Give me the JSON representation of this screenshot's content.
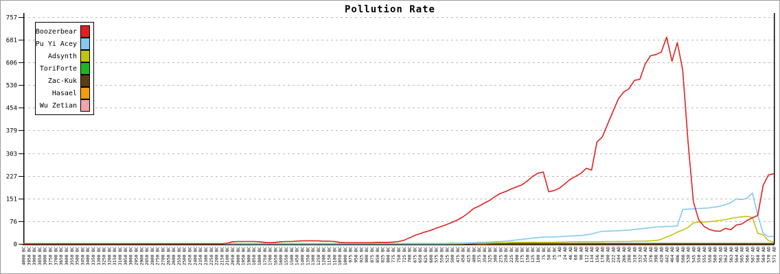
{
  "chart_data": {
    "type": "line",
    "title": "Pollution Rate",
    "xlabel": "",
    "ylabel": "",
    "ylim": [
      0,
      757
    ],
    "y_ticks": [
      0,
      76,
      151,
      227,
      303,
      379,
      454,
      530,
      606,
      681,
      757
    ],
    "grid": "horizontal-dashed",
    "legend_position": "top-left",
    "colors": {
      "grid": "#b9b9b9",
      "axis": "#000000",
      "background": "#ffffff"
    },
    "x_labels": [
      "4000 BC",
      "3950 BC",
      "3900 BC",
      "3850 BC",
      "3800 BC",
      "3750 BC",
      "3700 BC",
      "3650 BC",
      "3600 BC",
      "3550 BC",
      "3500 BC",
      "3450 BC",
      "3400 BC",
      "3350 BC",
      "3300 BC",
      "3250 BC",
      "3200 BC",
      "3150 BC",
      "3100 BC",
      "3050 BC",
      "3000 BC",
      "2950 BC",
      "2900 BC",
      "2850 BC",
      "2800 BC",
      "2750 BC",
      "2700 BC",
      "2650 BC",
      "2600 BC",
      "2550 BC",
      "2500 BC",
      "2450 BC",
      "2400 BC",
      "2350 BC",
      "2300 BC",
      "2250 BC",
      "2200 BC",
      "2150 BC",
      "2100 BC",
      "2050 BC",
      "2000 BC",
      "1950 BC",
      "1900 BC",
      "1850 BC",
      "1800 BC",
      "1750 BC",
      "1700 BC",
      "1650 BC",
      "1600 BC",
      "1550 BC",
      "1500 BC",
      "1450 BC",
      "1400 BC",
      "1350 BC",
      "1300 BC",
      "1250 BC",
      "1200 BC",
      "1150 BC",
      "1100 BC",
      "1050 BC",
      "1000 BC",
      "975 BC",
      "950 BC",
      "925 BC",
      "900 BC",
      "875 BC",
      "850 BC",
      "825 BC",
      "800 BC",
      "775 BC",
      "750 BC",
      "725 BC",
      "700 BC",
      "675 BC",
      "650 BC",
      "625 BC",
      "600 BC",
      "575 BC",
      "550 BC",
      "525 BC",
      "500 BC",
      "475 BC",
      "450 BC",
      "425 BC",
      "400 BC",
      "375 BC",
      "350 BC",
      "325 BC",
      "300 BC",
      "275 BC",
      "250 BC",
      "225 BC",
      "200 BC",
      "175 BC",
      "150 BC",
      "125 BC",
      "100 BC",
      "75 BC",
      "50 BC",
      "25 BC",
      "1 AD",
      "24 AD",
      "46 AD",
      "68 AD",
      "90 AD",
      "112 AD",
      "134 AD",
      "156 AD",
      "178 AD",
      "200 AD",
      "222 AD",
      "244 AD",
      "266 AD",
      "288 AD",
      "310 AD",
      "332 AD",
      "354 AD",
      "376 AD",
      "398 AD",
      "420 AD",
      "442 AD",
      "464 AD",
      "486 AD",
      "508 AD",
      "530 AD",
      "545 AD",
      "550 AD",
      "555 AD",
      "558 AD",
      "560 AD",
      "561 AD",
      "562 AD",
      "563 AD",
      "564 AD",
      "565 AD",
      "566 AD",
      "567 AD",
      "568 AD",
      "569 AD",
      "570 AD",
      "571 AD"
    ],
    "series": [
      {
        "name": "Boozerbear",
        "color": "#e02020",
        "values": [
          0,
          0,
          0,
          0,
          0,
          0,
          0,
          0,
          0,
          0,
          0,
          0,
          0,
          0,
          0,
          0,
          0,
          0,
          0,
          0,
          0,
          0,
          0,
          0,
          0,
          0,
          0,
          0,
          0,
          0,
          0,
          0,
          0,
          0,
          0,
          0,
          0,
          0,
          2,
          7,
          8,
          8,
          8,
          8,
          7,
          5,
          4,
          5,
          7,
          8,
          8,
          9,
          10,
          10,
          10,
          10,
          9,
          9,
          8,
          5,
          4,
          4,
          4,
          4,
          4,
          4,
          5,
          5,
          5,
          6,
          8,
          12,
          20,
          28,
          34,
          40,
          45,
          52,
          58,
          65,
          72,
          80,
          90,
          103,
          118,
          126,
          136,
          145,
          158,
          168,
          175,
          183,
          190,
          197,
          210,
          225,
          236,
          240,
          174,
          178,
          186,
          200,
          215,
          225,
          235,
          252,
          246,
          340,
          357,
          400,
          442,
          484,
          507,
          518,
          546,
          549,
          600,
          628,
          632,
          640,
          690,
          610,
          672,
          580,
          340,
          140,
          80,
          58,
          48,
          43,
          42,
          52,
          47,
          63,
          66,
          78,
          87,
          95,
          195,
          230,
          234
        ]
      },
      {
        "name": "Pu Yi Acey",
        "color": "#85c9ee",
        "values": [
          0,
          0,
          0,
          0,
          0,
          0,
          0,
          0,
          0,
          0,
          0,
          0,
          0,
          0,
          0,
          0,
          0,
          0,
          0,
          0,
          0,
          0,
          0,
          0,
          0,
          0,
          0,
          0,
          0,
          0,
          0,
          0,
          0,
          0,
          0,
          0,
          0,
          0,
          0,
          0,
          0,
          0,
          0,
          0,
          0,
          0,
          0,
          0,
          0,
          0,
          0,
          0,
          0,
          0,
          0,
          0,
          0,
          0,
          0,
          0,
          0,
          0,
          0,
          0,
          0,
          0,
          0,
          0,
          0,
          0,
          0,
          0,
          0,
          0,
          0,
          0,
          0,
          0,
          0,
          0,
          1,
          2,
          3,
          3,
          4,
          5,
          5,
          6,
          7,
          8,
          9,
          11,
          13,
          15,
          17,
          19,
          21,
          23,
          23,
          23,
          24,
          25,
          26,
          27,
          28,
          30,
          33,
          38,
          42,
          42,
          43,
          44,
          45,
          46,
          48,
          50,
          52,
          54,
          56,
          57,
          58,
          58,
          60,
          115,
          116,
          117,
          118,
          119,
          120,
          123,
          126,
          131,
          138,
          150,
          148,
          152,
          170,
          96,
          35,
          24,
          25
        ]
      },
      {
        "name": "Adsynth",
        "color": "#c2c218",
        "values": [
          0,
          0,
          0,
          0,
          0,
          0,
          0,
          0,
          0,
          0,
          0,
          0,
          0,
          0,
          0,
          0,
          0,
          0,
          0,
          0,
          0,
          0,
          0,
          0,
          0,
          0,
          0,
          0,
          0,
          0,
          0,
          0,
          0,
          0,
          0,
          0,
          0,
          0,
          0,
          0,
          0,
          0,
          0,
          0,
          0,
          0,
          0,
          0,
          0,
          0,
          0,
          0,
          0,
          0,
          0,
          0,
          0,
          0,
          0,
          0,
          0,
          0,
          0,
          0,
          0,
          0,
          0,
          0,
          0,
          0,
          0,
          0,
          0,
          0,
          0,
          0,
          0,
          0,
          0,
          0,
          0,
          0,
          1,
          2,
          3,
          3,
          3,
          3,
          4,
          4,
          4,
          5,
          5,
          5,
          5,
          5,
          5,
          5,
          5,
          5,
          6,
          6,
          7,
          7,
          7,
          7,
          7,
          7,
          7,
          8,
          8,
          8,
          8,
          8,
          9,
          9,
          9,
          10,
          11,
          15,
          23,
          30,
          39,
          46,
          55,
          70,
          73,
          73,
          74,
          76,
          79,
          81,
          85,
          88,
          90,
          92,
          88,
          35,
          30,
          11,
          5
        ]
      },
      {
        "name": "ToriForte",
        "color": "#21b421",
        "values": [
          1,
          1,
          1,
          1,
          1,
          1,
          1,
          1,
          1,
          1,
          1,
          1,
          1,
          1,
          1,
          1,
          1,
          1,
          1,
          1,
          1,
          1,
          1,
          1,
          1,
          1,
          1,
          1,
          1,
          1,
          1,
          1,
          1,
          1,
          1,
          1,
          1,
          1,
          1,
          1,
          1,
          1,
          1,
          1,
          1,
          1,
          1,
          1,
          1,
          1,
          1,
          1,
          1,
          1,
          1,
          1,
          1,
          1,
          1,
          1,
          1,
          1,
          1,
          1,
          1,
          1,
          1,
          1,
          1,
          1,
          1,
          1,
          1,
          1,
          1,
          1,
          1,
          1,
          1,
          1,
          2,
          2,
          2,
          2,
          3,
          3,
          3,
          3,
          3,
          3,
          3,
          2,
          2,
          2,
          2,
          2,
          1,
          1,
          1,
          1,
          1,
          1,
          1,
          1,
          1,
          1,
          1,
          1,
          1,
          1,
          1,
          1,
          1,
          1,
          1,
          1,
          1,
          1,
          1,
          1,
          1,
          1,
          1,
          1,
          1,
          1,
          1,
          1,
          1,
          1,
          1,
          1,
          1,
          1,
          1,
          1,
          1,
          1,
          1,
          1,
          1
        ]
      },
      {
        "name": "Zac-Kuk",
        "color": "#5d3b17",
        "values": [
          0,
          0,
          0,
          0,
          0,
          0,
          0,
          0,
          0,
          0,
          0,
          0,
          0,
          0,
          0,
          0,
          0,
          0,
          0,
          0,
          0,
          0,
          0,
          0,
          0,
          0,
          0,
          0,
          0,
          0,
          0,
          0,
          0,
          0,
          0,
          0,
          0,
          0,
          0,
          0,
          0,
          0,
          0,
          0,
          0,
          0,
          0,
          0,
          0,
          0,
          0,
          0,
          0,
          0,
          0,
          0,
          0,
          0,
          0,
          0,
          0,
          0,
          0,
          0,
          0,
          0,
          0,
          0,
          0,
          0,
          0,
          0,
          0,
          0,
          0,
          0,
          0,
          0,
          0,
          0,
          0,
          0,
          0,
          0,
          1,
          2,
          2,
          1,
          1,
          1,
          1,
          1,
          1,
          1,
          1,
          1,
          1,
          1,
          1,
          1,
          1,
          1,
          1,
          1,
          1,
          1,
          1,
          1,
          1,
          1,
          1,
          1,
          1,
          1,
          1,
          1,
          1,
          1,
          1,
          1,
          1,
          1,
          1,
          1,
          1,
          1,
          1,
          1,
          1,
          1,
          1,
          1,
          1,
          1,
          1,
          1,
          1,
          1,
          1,
          1,
          1
        ]
      },
      {
        "name": "Hasael",
        "color": "#f49c0c",
        "values": [
          0,
          0,
          0,
          0,
          0,
          0,
          0,
          0,
          0,
          0,
          0,
          0,
          0,
          0,
          0,
          0,
          0,
          0,
          0,
          0,
          0,
          0,
          0,
          0,
          0,
          0,
          0,
          0,
          0,
          0,
          0,
          0,
          0,
          0,
          0,
          0,
          0,
          0,
          0,
          0,
          0,
          0,
          0,
          0,
          0,
          0,
          0,
          0,
          0,
          0,
          0,
          0,
          0,
          0,
          0,
          0,
          0,
          0,
          0,
          0,
          0,
          0,
          0,
          0,
          0,
          0,
          0,
          0,
          0,
          0,
          0,
          0,
          0,
          0,
          0,
          0,
          0,
          0,
          0,
          0,
          0,
          0,
          0,
          0,
          0,
          0,
          0,
          0,
          0,
          0,
          0,
          0,
          0,
          0,
          0,
          0,
          0,
          0,
          0,
          0,
          0,
          0,
          0,
          0,
          0,
          0,
          0,
          0,
          0,
          0,
          0,
          0,
          0,
          0,
          0,
          0,
          0,
          0,
          0,
          0,
          0,
          0,
          0,
          0,
          0,
          0,
          0,
          0,
          0,
          0,
          0,
          0,
          0,
          0,
          0,
          0,
          0,
          0,
          0,
          0,
          0
        ]
      },
      {
        "name": "Wu Zetian",
        "color": "#f2a3ab",
        "values": [
          0,
          0,
          0,
          0,
          0,
          0,
          0,
          0,
          0,
          0,
          0,
          0,
          0,
          0,
          0,
          0,
          0,
          0,
          0,
          0,
          0,
          0,
          0,
          0,
          0,
          0,
          0,
          0,
          0,
          0,
          0,
          0,
          0,
          0,
          0,
          0,
          0,
          0,
          0,
          0,
          0,
          0,
          0,
          0,
          0,
          0,
          0,
          0,
          0,
          0,
          0,
          0,
          0,
          0,
          0,
          0,
          0,
          0,
          0,
          0,
          0,
          0,
          0,
          0,
          0,
          0,
          0,
          0,
          0,
          0,
          0,
          0,
          0,
          0,
          0,
          0,
          0,
          0,
          0,
          0,
          0,
          0,
          0,
          0,
          0,
          0,
          0,
          0,
          0,
          0,
          0,
          0,
          0,
          0,
          0,
          0,
          0,
          0,
          0,
          0,
          0,
          0,
          0,
          0,
          0,
          0,
          0,
          0,
          0,
          0,
          0,
          0,
          0,
          0,
          0,
          0,
          0,
          0,
          0,
          0,
          0,
          0,
          0,
          0,
          0,
          0,
          0,
          0,
          0,
          0,
          0,
          0,
          0,
          0,
          0,
          0,
          0,
          0,
          0,
          0,
          0
        ]
      }
    ]
  }
}
